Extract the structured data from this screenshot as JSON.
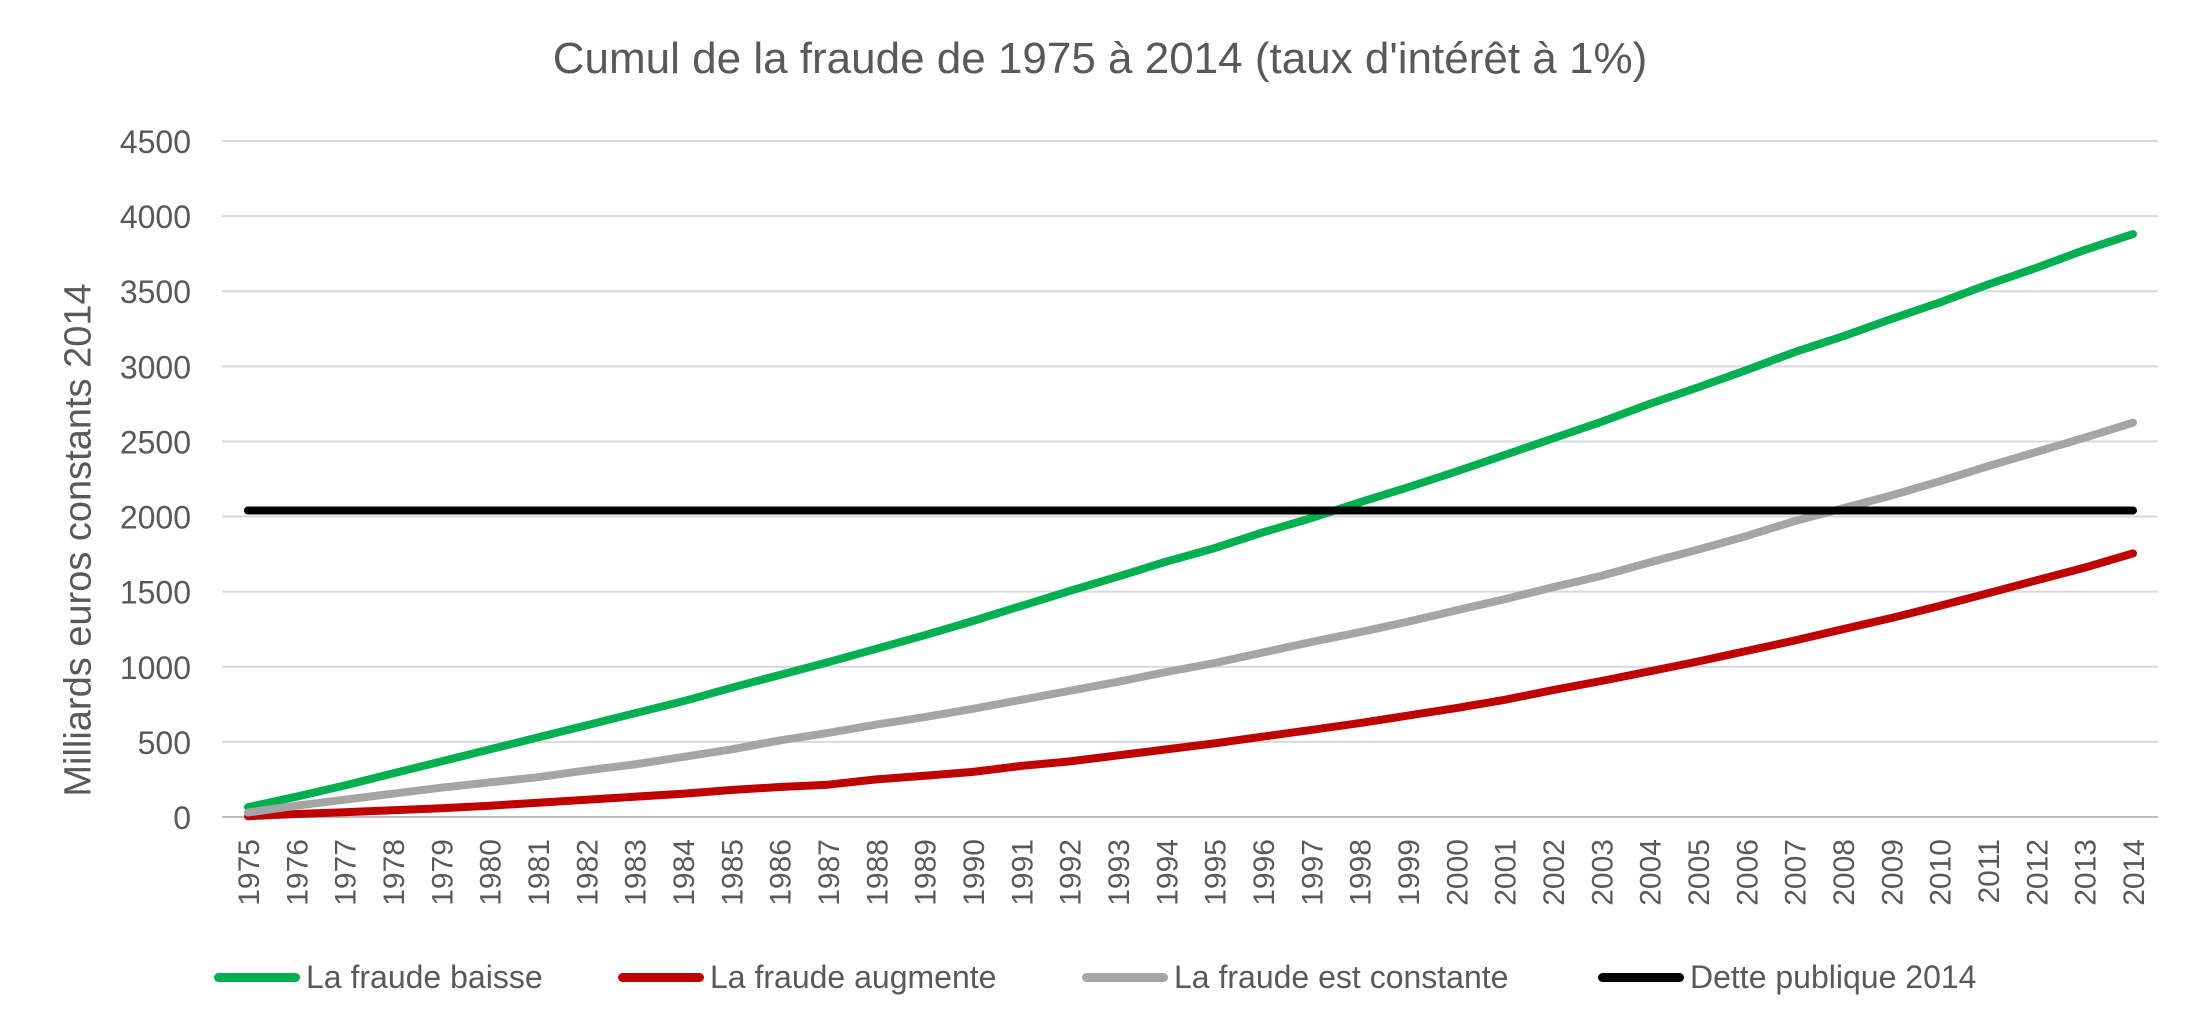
{
  "chart_data": {
    "type": "line",
    "title": "Cumul de la fraude de 1975 à 2014 (taux d'intérêt à 1%)",
    "ylabel": "Milliards euros constants 2014",
    "xlabel": "",
    "ylim": [
      0,
      4500
    ],
    "yticks": [
      "0",
      "500",
      "1000",
      "1500",
      "2000",
      "2500",
      "3000",
      "3500",
      "4000",
      "4500"
    ],
    "grid": "horizontal",
    "legend_position": "bottom",
    "x": [
      "1975",
      "1976",
      "1977",
      "1978",
      "1979",
      "1980",
      "1981",
      "1982",
      "1983",
      "1984",
      "1985",
      "1986",
      "1987",
      "1988",
      "1989",
      "1990",
      "1991",
      "1992",
      "1993",
      "1994",
      "1995",
      "1996",
      "1997",
      "1998",
      "1999",
      "2000",
      "2001",
      "2002",
      "2003",
      "2004",
      "2005",
      "2006",
      "2007",
      "2008",
      "2009",
      "2010",
      "2011",
      "2012",
      "2013",
      "2014"
    ],
    "series": [
      {
        "name": "La fraude baisse",
        "color": "#00b050",
        "values": [
          65,
          135,
          210,
          290,
          370,
          450,
          530,
          610,
          690,
          770,
          860,
          945,
          1030,
          1120,
          1210,
          1305,
          1405,
          1505,
          1600,
          1700,
          1790,
          1895,
          1990,
          2095,
          2195,
          2300,
          2410,
          2520,
          2630,
          2750,
          2860,
          2975,
          3095,
          3200,
          3315,
          3425,
          3545,
          3655,
          3775,
          3880
        ]
      },
      {
        "name": "La fraude augmente",
        "color": "#c00000",
        "values": [
          5,
          20,
          32,
          45,
          58,
          75,
          95,
          115,
          135,
          155,
          180,
          200,
          215,
          250,
          275,
          300,
          340,
          370,
          410,
          450,
          490,
          535,
          580,
          625,
          675,
          725,
          780,
          845,
          905,
          970,
          1035,
          1105,
          1175,
          1250,
          1325,
          1405,
          1490,
          1575,
          1660,
          1755
        ]
      },
      {
        "name": "La fraude est constante",
        "color": "#a5a5a5",
        "values": [
          30,
          75,
          115,
          155,
          195,
          230,
          265,
          310,
          350,
          400,
          450,
          510,
          560,
          615,
          665,
          720,
          780,
          840,
          900,
          965,
          1025,
          1095,
          1165,
          1230,
          1300,
          1375,
          1450,
          1530,
          1605,
          1695,
          1780,
          1870,
          1970,
          2055,
          2140,
          2235,
          2335,
          2430,
          2525,
          2625
        ]
      },
      {
        "name": "Dette publique 2014",
        "color": "#000000",
        "values": [
          2040,
          2040,
          2040,
          2040,
          2040,
          2040,
          2040,
          2040,
          2040,
          2040,
          2040,
          2040,
          2040,
          2040,
          2040,
          2040,
          2040,
          2040,
          2040,
          2040,
          2040,
          2040,
          2040,
          2040,
          2040,
          2040,
          2040,
          2040,
          2040,
          2040,
          2040,
          2040,
          2040,
          2040,
          2040,
          2040,
          2040,
          2040,
          2040,
          2040
        ]
      }
    ]
  }
}
